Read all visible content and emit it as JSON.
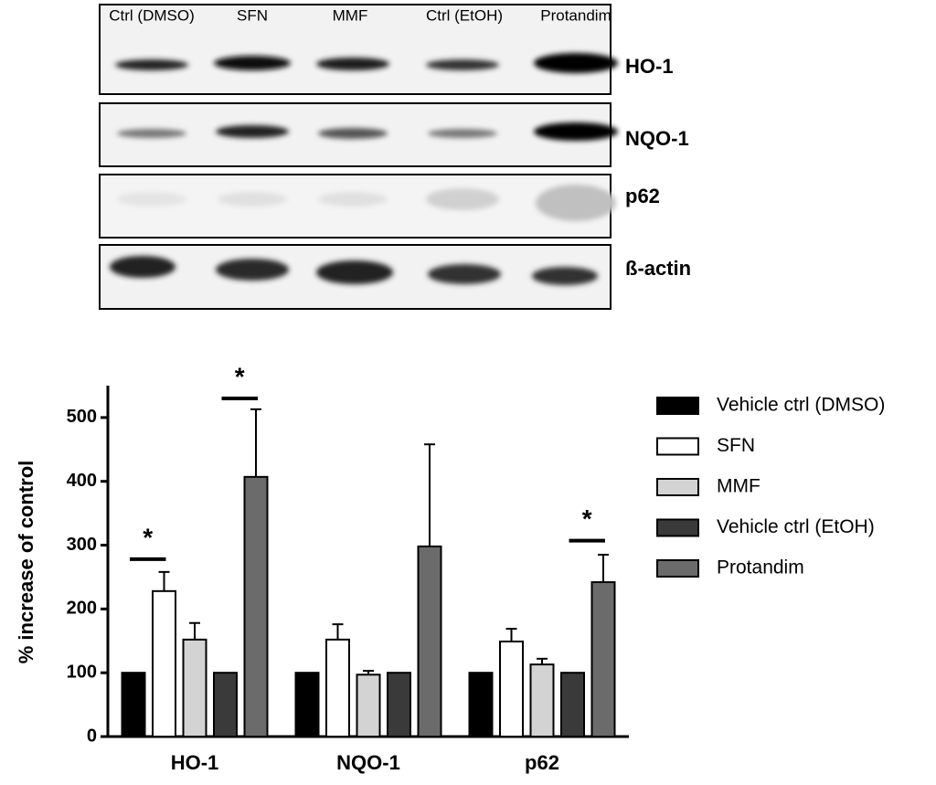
{
  "blot": {
    "lanes": [
      "Ctrl (DMSO)",
      "SFN",
      "MMF",
      "Ctrl (EtOH)",
      "Protandim"
    ],
    "proteins": [
      "HO-1",
      "NQO-1",
      "p62",
      "ß-actin"
    ]
  },
  "chart_data": {
    "type": "bar",
    "y_label": "% increase of control",
    "categories": [
      "HO-1",
      "NQO-1",
      "p62"
    ],
    "series": [
      {
        "name": "Vehicle ctrl (DMSO)",
        "color": "#000000",
        "values": [
          100,
          100,
          100
        ],
        "errors": [
          0,
          0,
          0
        ]
      },
      {
        "name": "SFN",
        "color": "#ffffff",
        "values": [
          228,
          152,
          149
        ],
        "errors": [
          30,
          24,
          20
        ]
      },
      {
        "name": "MMF",
        "color": "#d3d3d3",
        "values": [
          152,
          97,
          113
        ],
        "errors": [
          26,
          6,
          9
        ]
      },
      {
        "name": "Vehicle ctrl (EtOH)",
        "color": "#3a3a3a",
        "values": [
          100,
          100,
          100
        ],
        "errors": [
          0,
          0,
          0
        ]
      },
      {
        "name": "Protandim",
        "color": "#6b6b6b",
        "values": [
          407,
          298,
          242
        ],
        "errors": [
          106,
          160,
          43
        ]
      }
    ],
    "ylim": [
      0,
      550
    ],
    "yticks": [
      0,
      100,
      200,
      300,
      400,
      500
    ],
    "annotations": [
      {
        "text": "*",
        "category": 0,
        "from": 0,
        "to": 1,
        "y": 278
      },
      {
        "text": "*",
        "category": 0,
        "from": 3,
        "to": 4,
        "y": 530
      },
      {
        "text": "*",
        "category": 2,
        "from": 3,
        "to": 4,
        "y": 307
      }
    ]
  }
}
